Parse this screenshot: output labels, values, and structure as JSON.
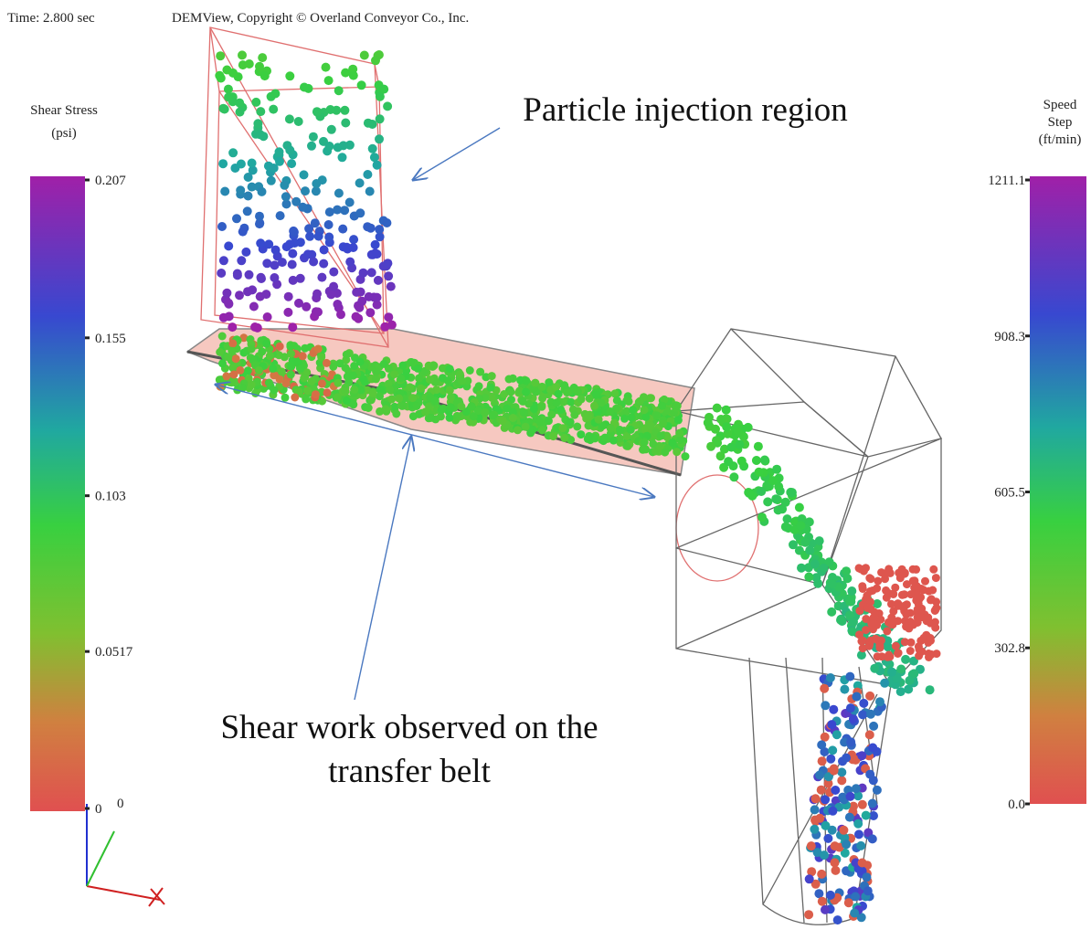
{
  "header": {
    "time": "Time: 2.800 sec",
    "copyright": "DEMView, Copyright © Overland Conveyor Co., Inc."
  },
  "legends": [
    {
      "title": [
        "Shear Stress",
        "(psi)"
      ],
      "ticks": [
        0.207,
        0.155,
        0.103,
        0.0517,
        0
      ]
    },
    {
      "title": [
        "Speed",
        "Step",
        "(ft/min)"
      ],
      "ticks": [
        1211.1,
        908.3,
        605.5,
        302.8,
        {
          "value": 0,
          "label": "0.0"
        }
      ]
    }
  ],
  "annotations": [
    {
      "lines": [
        "Particle injection region"
      ]
    },
    {
      "lines": [
        "Shear work observed on the",
        "transfer belt"
      ]
    }
  ]
}
